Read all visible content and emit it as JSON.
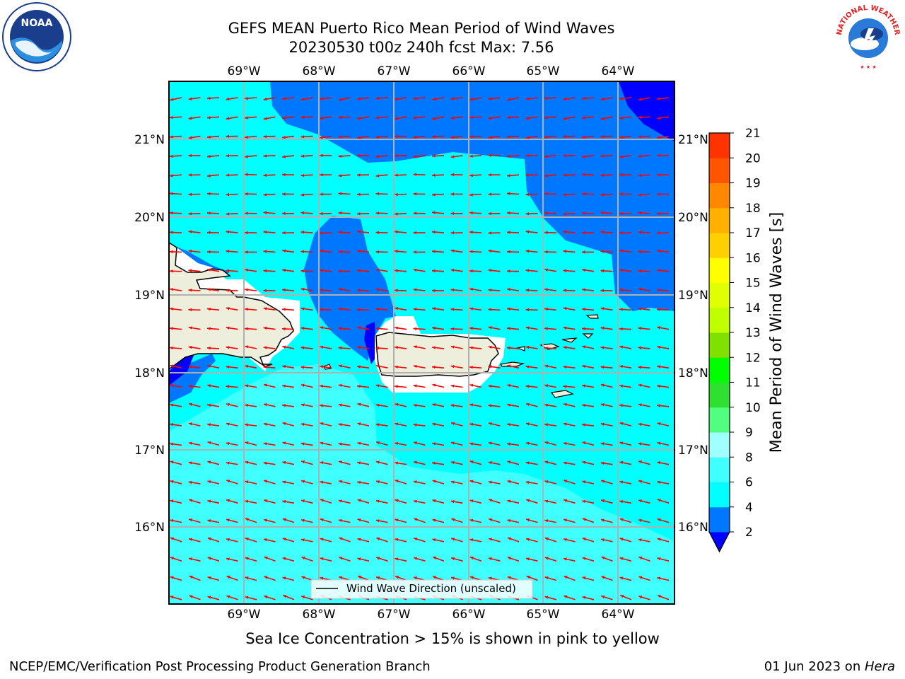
{
  "title": {
    "line1": "GEFS MEAN Puerto Rico Mean Period of Wind Waves",
    "line2": "20230530 t00z 240h fcst   Max: 7.56"
  },
  "logos": {
    "left": "noaa-logo",
    "right": "national-weather-service-logo",
    "left_text": "NOAA",
    "right_text": "NATIONAL WEATHER SERVICE"
  },
  "map": {
    "lon_labels": [
      "69°W",
      "68°W",
      "67°W",
      "66°W",
      "65°W",
      "64°W"
    ],
    "lat_labels": [
      "21°N",
      "20°N",
      "19°N",
      "18°N",
      "17°N",
      "16°N"
    ],
    "legend_label": "Wind Wave Direction (unscaled)",
    "arrow_color": "#ff0000",
    "land_color": "#eeeedd"
  },
  "colorbar": {
    "label": "Mean Period of Wind Waves [s]",
    "ticks": [
      "2",
      "4",
      "6",
      "8",
      "9",
      "10",
      "11",
      "12",
      "13",
      "14",
      "15",
      "16",
      "17",
      "18",
      "19",
      "20",
      "21"
    ],
    "colors": [
      "#0000ff",
      "#0077ff",
      "#00ffff",
      "#40ffff",
      "#a0ffff",
      "#50ff80",
      "#30e030",
      "#00ff00",
      "#80e000",
      "#c0ff00",
      "#e0ff00",
      "#ffff00",
      "#ffd000",
      "#ffb000",
      "#ff8800",
      "#ff5500",
      "#ff3300",
      "#ff0000"
    ]
  },
  "footer": {
    "note": "Sea Ice Concentration > 15% is shown in pink to yellow",
    "credit": "NCEP/EMC/Verification Post Processing Product Generation Branch",
    "date": "01 Jun 2023 on ",
    "host": "Hera"
  }
}
